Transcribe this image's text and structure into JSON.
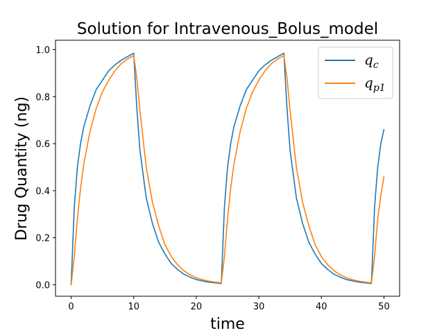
{
  "chart_data": {
    "type": "line",
    "title": "Solution for Intravenous_Bolus_model",
    "xlabel": "time",
    "ylabel": "Drug Quantity (ng)",
    "xlim": [
      -2.5,
      52.5
    ],
    "ylim": [
      -0.049,
      1.04
    ],
    "xticks": [
      "0",
      "10",
      "20",
      "30",
      "40",
      "50"
    ],
    "yticks": [
      "0.0",
      "0.2",
      "0.4",
      "0.6",
      "0.8",
      "1.0"
    ],
    "grid": false,
    "legend_position": "top-right",
    "series": [
      {
        "name": "q",
        "subscript": "c",
        "color": "#1f77b4",
        "x": [
          0,
          0.5,
          1,
          1.5,
          2,
          3,
          4,
          5,
          6,
          7,
          8,
          9,
          10,
          10.5,
          11,
          12,
          13,
          14,
          15,
          16,
          17,
          18,
          19,
          20,
          21,
          22,
          23,
          24,
          24.5,
          25,
          25.5,
          26,
          27,
          28,
          29,
          30,
          31,
          32,
          33,
          34,
          34.5,
          35,
          36,
          37,
          38,
          39,
          40,
          41,
          42,
          43,
          44,
          45,
          46,
          47,
          48,
          48.5,
          49,
          49.5,
          50
        ],
        "y": [
          0.0,
          0.33,
          0.5,
          0.6,
          0.67,
          0.76,
          0.83,
          0.87,
          0.91,
          0.935,
          0.955,
          0.97,
          0.985,
          0.75,
          0.57,
          0.37,
          0.26,
          0.18,
          0.13,
          0.09,
          0.065,
          0.045,
          0.032,
          0.022,
          0.016,
          0.011,
          0.008,
          0.005,
          0.33,
          0.5,
          0.6,
          0.67,
          0.76,
          0.83,
          0.87,
          0.91,
          0.935,
          0.955,
          0.97,
          0.985,
          0.75,
          0.57,
          0.37,
          0.26,
          0.18,
          0.13,
          0.09,
          0.065,
          0.045,
          0.032,
          0.022,
          0.016,
          0.011,
          0.008,
          0.005,
          0.33,
          0.5,
          0.6,
          0.66
        ]
      },
      {
        "name": "q",
        "subscript": "p1",
        "color": "#ff7f0e",
        "x": [
          0,
          0.5,
          1,
          1.5,
          2,
          3,
          4,
          5,
          6,
          7,
          8,
          9,
          10,
          10.5,
          11,
          12,
          13,
          14,
          15,
          16,
          17,
          18,
          19,
          20,
          21,
          22,
          23,
          24,
          24.5,
          25,
          25.5,
          26,
          27,
          28,
          29,
          30,
          31,
          32,
          33,
          34,
          34.5,
          35,
          36,
          37,
          38,
          39,
          40,
          41,
          42,
          43,
          44,
          45,
          46,
          47,
          48,
          48.5,
          49,
          49.5,
          50
        ],
        "y": [
          0.0,
          0.12,
          0.28,
          0.41,
          0.51,
          0.65,
          0.75,
          0.82,
          0.87,
          0.91,
          0.94,
          0.96,
          0.975,
          0.88,
          0.74,
          0.5,
          0.35,
          0.25,
          0.17,
          0.12,
          0.085,
          0.06,
          0.042,
          0.03,
          0.021,
          0.015,
          0.011,
          0.008,
          0.12,
          0.28,
          0.41,
          0.51,
          0.65,
          0.75,
          0.82,
          0.87,
          0.91,
          0.94,
          0.96,
          0.975,
          0.88,
          0.74,
          0.5,
          0.35,
          0.25,
          0.17,
          0.12,
          0.085,
          0.06,
          0.042,
          0.03,
          0.021,
          0.015,
          0.011,
          0.008,
          0.12,
          0.28,
          0.38,
          0.46
        ]
      }
    ]
  }
}
